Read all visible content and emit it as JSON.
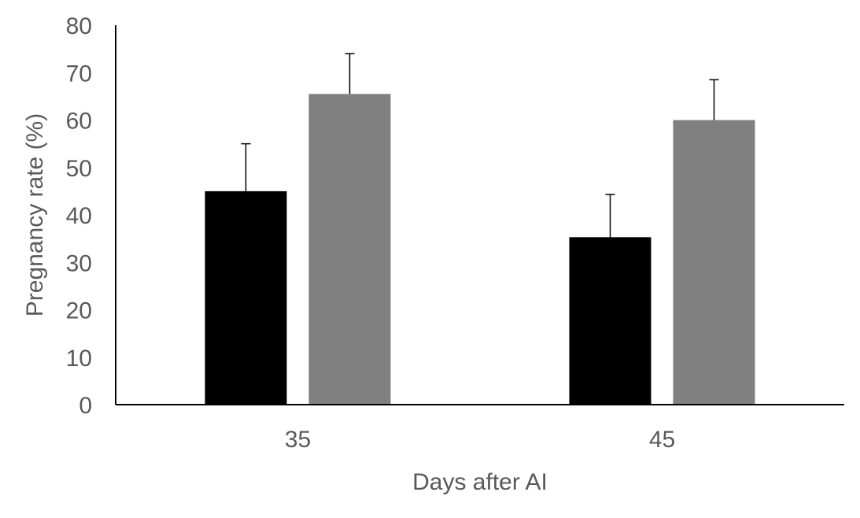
{
  "chart_data": {
    "type": "bar",
    "title": "",
    "xlabel": "Days after AI",
    "ylabel": "Pregnancy rate (%)",
    "categories": [
      "35",
      "45"
    ],
    "ylim": [
      0,
      80
    ],
    "yticks": [
      "0",
      "10",
      "20",
      "30",
      "40",
      "50",
      "60",
      "70",
      "80"
    ],
    "grid": false,
    "legend": "none",
    "series": [
      {
        "values": [
          45,
          35.3
        ],
        "errors": [
          10,
          9
        ],
        "color": "#000000"
      },
      {
        "values": [
          65.5,
          60
        ],
        "errors": [
          8.5,
          8.5
        ],
        "color": "#808080"
      }
    ],
    "axis_color": "#000000",
    "text_color": "#595959"
  }
}
